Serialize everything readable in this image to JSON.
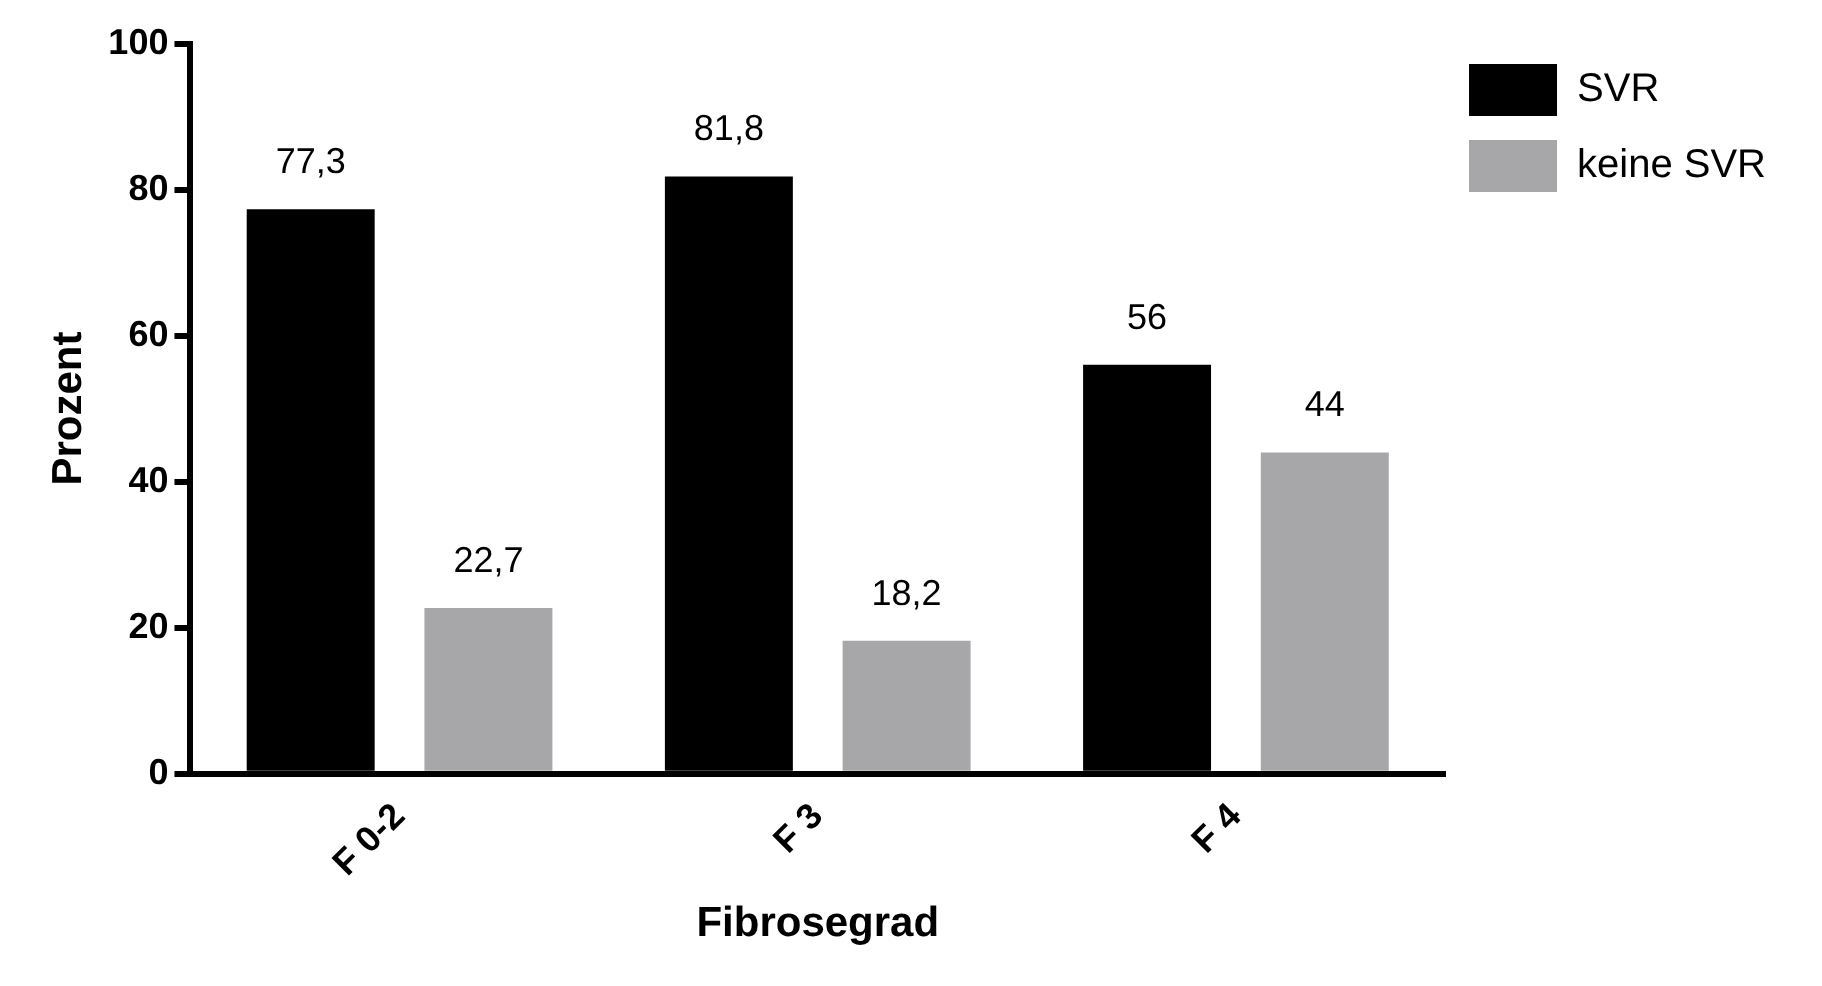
{
  "chart_data": {
    "type": "bar",
    "xlabel": "Fibrosegrad",
    "ylabel": "Prozent",
    "categories": [
      "F 0-2",
      "F 3",
      "F 4"
    ],
    "series": [
      {
        "name": "SVR",
        "color": "#000000",
        "values": [
          77.3,
          81.8,
          56
        ],
        "value_labels": [
          "77,3",
          "81,8",
          "56"
        ]
      },
      {
        "name": "keine SVR",
        "color": "#a7a7a9",
        "values": [
          22.7,
          18.2,
          44
        ],
        "value_labels": [
          "22,7",
          "18,2",
          "44"
        ]
      }
    ],
    "ylim": [
      0,
      100
    ],
    "yticks": [
      0,
      20,
      40,
      60,
      80,
      100
    ],
    "grid": false,
    "legend": "top right"
  }
}
